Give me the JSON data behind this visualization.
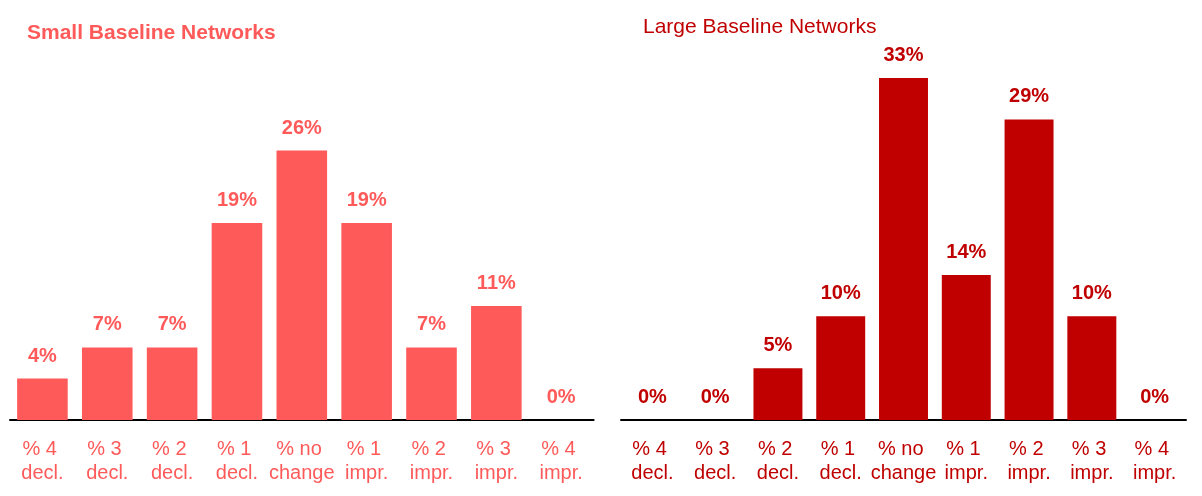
{
  "chart_data": [
    {
      "type": "bar",
      "title": "Small Baseline Networks",
      "categories": [
        "% 4 decl.",
        "% 3 decl.",
        "% 2 decl.",
        "% 1 decl.",
        "% no change",
        "% 1 impr.",
        "% 2 impr.",
        "% 3 impr.",
        "% 4 impr."
      ],
      "values": [
        4,
        7,
        7,
        19,
        26,
        19,
        7,
        11,
        0
      ],
      "value_labels": [
        "4%",
        "7%",
        "7%",
        "19%",
        "26%",
        "19%",
        "7%",
        "11%",
        "0%"
      ],
      "color": "#ff5a5a",
      "tick_labels": "x"
    },
    {
      "type": "bar",
      "title": "Large Baseline Networks",
      "categories": [
        "% 4 decl.",
        "% 3 decl.",
        "% 2 decl.",
        "% 1 decl.",
        "% no change",
        "% 1 impr.",
        "% 2 impr.",
        "% 3 impr.",
        "% 4 impr."
      ],
      "values": [
        0,
        0,
        5,
        10,
        33,
        14,
        29,
        10,
        0
      ],
      "value_labels": [
        "0%",
        "0%",
        "5%",
        "10%",
        "33%",
        "14%",
        "29%",
        "10%",
        "0%"
      ],
      "color": "#c00000",
      "tick_labels": "x"
    }
  ]
}
